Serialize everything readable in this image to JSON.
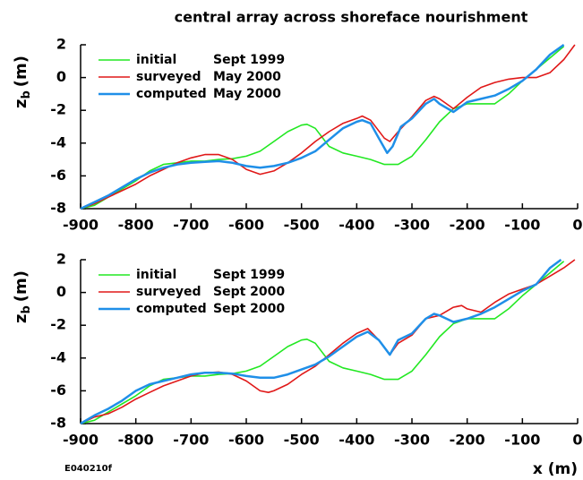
{
  "chart_data": [
    {
      "type": "line",
      "title": "central array across shoreface nourishment",
      "ylabel": "z",
      "ylabel_sub": "b",
      "ylabel_unit": "(m)",
      "xlim": [
        -900,
        0
      ],
      "xticks": [
        -900,
        -800,
        -700,
        -600,
        -500,
        -400,
        -300,
        -200,
        -100,
        0
      ],
      "ylim": [
        -8,
        2
      ],
      "yticks": [
        2,
        0,
        -2,
        -4,
        -6,
        -8
      ],
      "legend": "upper left",
      "series": [
        {
          "name": "initial",
          "date": "Sept 1999",
          "color": "#22e822",
          "x": [
            -900,
            -875,
            -850,
            -825,
            -800,
            -775,
            -750,
            -725,
            -700,
            -675,
            -650,
            -625,
            -600,
            -575,
            -550,
            -525,
            -500,
            -490,
            -475,
            -450,
            -425,
            -400,
            -375,
            -350,
            -325,
            -300,
            -275,
            -250,
            -225,
            -200,
            -175,
            -150,
            -125,
            -100,
            -75,
            -50,
            -25
          ],
          "values": [
            -8,
            -7.8,
            -7.3,
            -6.8,
            -6.3,
            -5.7,
            -5.3,
            -5.2,
            -5.1,
            -5.1,
            -5.0,
            -4.95,
            -4.8,
            -4.5,
            -3.9,
            -3.3,
            -2.9,
            -2.85,
            -3.1,
            -4.2,
            -4.6,
            -4.8,
            -5.0,
            -5.3,
            -5.3,
            -4.8,
            -3.8,
            -2.7,
            -1.9,
            -1.6,
            -1.6,
            -1.6,
            -1.0,
            -0.2,
            0.5,
            1.2,
            1.9
          ]
        },
        {
          "name": "surveyed",
          "date": "May 2000",
          "color": "#e01818",
          "x": [
            -900,
            -875,
            -850,
            -825,
            -800,
            -775,
            -750,
            -725,
            -700,
            -675,
            -650,
            -625,
            -600,
            -575,
            -550,
            -525,
            -500,
            -475,
            -450,
            -425,
            -400,
            -390,
            -375,
            -350,
            -340,
            -325,
            -300,
            -275,
            -260,
            -250,
            -225,
            -200,
            -175,
            -150,
            -125,
            -100,
            -75,
            -50,
            -25,
            -5
          ],
          "values": [
            -8,
            -7.7,
            -7.3,
            -6.9,
            -6.5,
            -6.0,
            -5.6,
            -5.2,
            -4.9,
            -4.7,
            -4.7,
            -5.0,
            -5.6,
            -5.9,
            -5.7,
            -5.2,
            -4.6,
            -3.9,
            -3.3,
            -2.8,
            -2.5,
            -2.35,
            -2.6,
            -3.7,
            -3.9,
            -3.3,
            -2.4,
            -1.4,
            -1.15,
            -1.3,
            -1.9,
            -1.2,
            -0.6,
            -0.3,
            -0.1,
            0.0,
            0.0,
            0.3,
            1.1,
            2.0
          ]
        },
        {
          "name": "computed",
          "date": "May 2000",
          "color": "#1f8fe8",
          "x": [
            -900,
            -875,
            -850,
            -825,
            -800,
            -775,
            -750,
            -725,
            -700,
            -675,
            -650,
            -625,
            -600,
            -575,
            -550,
            -525,
            -500,
            -475,
            -450,
            -425,
            -400,
            -390,
            -375,
            -360,
            -345,
            -335,
            -320,
            -300,
            -275,
            -260,
            -250,
            -225,
            -200,
            -175,
            -150,
            -125,
            -100,
            -75,
            -50,
            -25
          ],
          "values": [
            -8,
            -7.6,
            -7.2,
            -6.7,
            -6.2,
            -5.8,
            -5.5,
            -5.3,
            -5.2,
            -5.15,
            -5.1,
            -5.2,
            -5.4,
            -5.5,
            -5.4,
            -5.2,
            -4.9,
            -4.5,
            -3.8,
            -3.1,
            -2.7,
            -2.6,
            -2.8,
            -3.7,
            -4.6,
            -4.2,
            -3.0,
            -2.5,
            -1.6,
            -1.3,
            -1.6,
            -2.1,
            -1.5,
            -1.3,
            -1.1,
            -0.7,
            -0.2,
            0.5,
            1.4,
            2.0
          ]
        }
      ]
    },
    {
      "type": "line",
      "xlabel": "x (m)",
      "annotation": "E040210f",
      "ylabel": "z",
      "ylabel_sub": "b",
      "ylabel_unit": "(m)",
      "xlim": [
        -900,
        0
      ],
      "xticks": [
        -900,
        -800,
        -700,
        -600,
        -500,
        -400,
        -300,
        -200,
        -100,
        0
      ],
      "ylim": [
        -8,
        2
      ],
      "yticks": [
        2,
        0,
        -2,
        -4,
        -6,
        -8
      ],
      "legend": "upper left",
      "series": [
        {
          "name": "initial",
          "date": "Sept 1999",
          "color": "#22e822",
          "x": [
            -900,
            -875,
            -850,
            -825,
            -800,
            -775,
            -750,
            -725,
            -700,
            -675,
            -650,
            -625,
            -600,
            -575,
            -550,
            -525,
            -500,
            -490,
            -475,
            -450,
            -425,
            -400,
            -375,
            -350,
            -325,
            -300,
            -275,
            -250,
            -225,
            -200,
            -175,
            -150,
            -125,
            -100,
            -75,
            -50,
            -25
          ],
          "values": [
            -8,
            -7.8,
            -7.3,
            -6.8,
            -6.3,
            -5.7,
            -5.3,
            -5.2,
            -5.1,
            -5.1,
            -5.0,
            -4.95,
            -4.8,
            -4.5,
            -3.9,
            -3.3,
            -2.9,
            -2.85,
            -3.1,
            -4.2,
            -4.6,
            -4.8,
            -5.0,
            -5.3,
            -5.3,
            -4.8,
            -3.8,
            -2.7,
            -1.9,
            -1.6,
            -1.6,
            -1.6,
            -1.0,
            -0.2,
            0.5,
            1.2,
            1.9
          ]
        },
        {
          "name": "surveyed",
          "date": "Sept 2000",
          "color": "#e01818",
          "x": [
            -900,
            -875,
            -850,
            -825,
            -800,
            -775,
            -750,
            -725,
            -700,
            -675,
            -650,
            -625,
            -600,
            -575,
            -560,
            -550,
            -525,
            -500,
            -475,
            -450,
            -425,
            -400,
            -380,
            -360,
            -340,
            -325,
            -300,
            -275,
            -250,
            -225,
            -210,
            -200,
            -175,
            -150,
            -125,
            -100,
            -75,
            -50,
            -25,
            -5
          ],
          "values": [
            -8,
            -7.6,
            -7.4,
            -7.0,
            -6.5,
            -6.1,
            -5.7,
            -5.4,
            -5.1,
            -4.9,
            -4.85,
            -5.0,
            -5.4,
            -6.0,
            -6.1,
            -6.0,
            -5.6,
            -5.0,
            -4.5,
            -3.8,
            -3.1,
            -2.5,
            -2.2,
            -2.9,
            -3.8,
            -3.1,
            -2.6,
            -1.6,
            -1.4,
            -0.9,
            -0.8,
            -1.0,
            -1.2,
            -0.6,
            -0.1,
            0.2,
            0.5,
            1.0,
            1.5,
            2.0
          ]
        },
        {
          "name": "computed",
          "date": "Sept 2000",
          "color": "#1f8fe8",
          "x": [
            -900,
            -875,
            -850,
            -825,
            -800,
            -775,
            -750,
            -725,
            -700,
            -675,
            -650,
            -625,
            -600,
            -575,
            -550,
            -525,
            -500,
            -475,
            -450,
            -425,
            -400,
            -380,
            -360,
            -340,
            -325,
            -300,
            -275,
            -260,
            -250,
            -225,
            -200,
            -175,
            -150,
            -125,
            -100,
            -75,
            -50,
            -30
          ],
          "values": [
            -8,
            -7.5,
            -7.1,
            -6.6,
            -6.0,
            -5.6,
            -5.4,
            -5.2,
            -5.0,
            -4.9,
            -4.9,
            -4.95,
            -5.1,
            -5.2,
            -5.2,
            -5.0,
            -4.7,
            -4.4,
            -3.9,
            -3.3,
            -2.7,
            -2.4,
            -2.9,
            -3.8,
            -2.9,
            -2.5,
            -1.6,
            -1.3,
            -1.4,
            -1.8,
            -1.6,
            -1.3,
            -0.9,
            -0.4,
            0.1,
            0.5,
            1.5,
            2.0
          ]
        }
      ]
    }
  ]
}
